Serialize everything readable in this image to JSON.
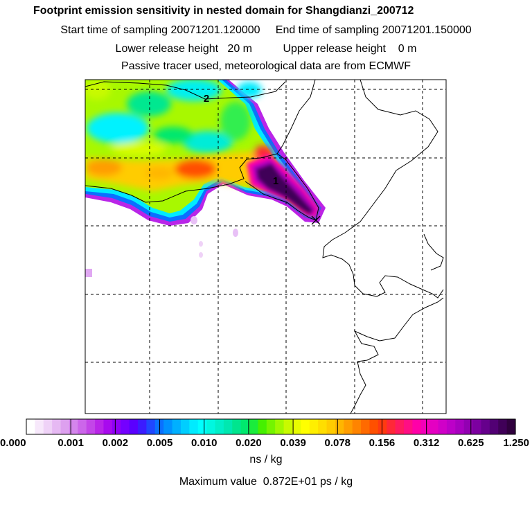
{
  "header": {
    "title": "Footprint emission sensitivity in nested domain for Shangdianzi_200712",
    "sampling_line": "Start time of sampling 20071201.120000     End time of sampling 20071201.150000",
    "height_line": "Lower release height   20 m          Upper release height    0 m",
    "tracer_line": "Passive tracer used, meteorological data are from ECMWF"
  },
  "map": {
    "markers": [
      {
        "label": "1"
      },
      {
        "label": "2"
      }
    ]
  },
  "colorbar": {
    "tick_labels": [
      "0.000",
      "0.001",
      "0.002",
      "0.005",
      "0.010",
      "0.020",
      "0.039",
      "0.078",
      "0.156",
      "0.312",
      "0.625",
      "1.250"
    ],
    "colors": [
      "#ffffff",
      "#f7e8fb",
      "#efd2f7",
      "#e6b9f3",
      "#dda0ef",
      "#d485ec",
      "#cc66ea",
      "#c346e8",
      "#b925e8",
      "#a80aee",
      "#8f00f5",
      "#7400ff",
      "#5a00ff",
      "#3b1cff",
      "#2047ff",
      "#0a70ff",
      "#0091ff",
      "#00b0ff",
      "#00ceff",
      "#00ebff",
      "#00ffff",
      "#00f7e0",
      "#00efc8",
      "#00e8b0",
      "#00e58e",
      "#00e86e",
      "#1aec3c",
      "#45f000",
      "#74f400",
      "#a0f800",
      "#c8fa00",
      "#e8fc00",
      "#ffff00",
      "#ffef00",
      "#ffde00",
      "#ffcc00",
      "#ffb600",
      "#ff9d00",
      "#ff8400",
      "#ff6a00",
      "#ff5000",
      "#ff3a10",
      "#ff2838",
      "#ff1a60",
      "#ff0e84",
      "#ff00a8",
      "#f400b8",
      "#e400c2",
      "#d000c8",
      "#bc00c8",
      "#a800c0",
      "#9200b2",
      "#7c00a0",
      "#66008c",
      "#520074",
      "#400058",
      "#30003e"
    ],
    "unit": "ns / kg"
  },
  "footer": {
    "max_value": "Maximum value  0.872E+01 ps / kg"
  }
}
